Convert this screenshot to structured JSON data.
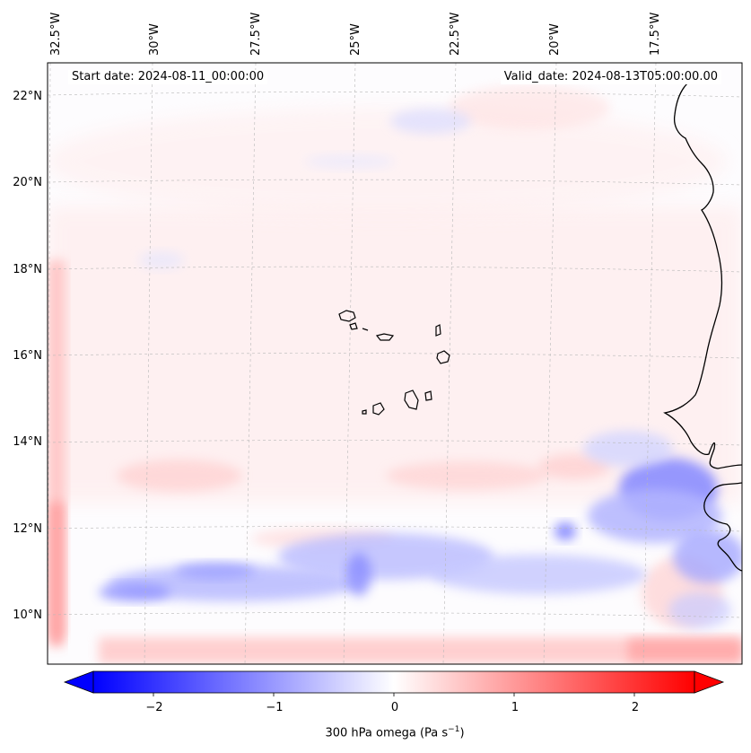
{
  "header": {
    "start_date": "Start date: 2024-08-11_00:00:00",
    "valid_date": "Valid_date: 2024-08-13T05:00:00.00"
  },
  "map": {
    "projection": "lambert-conformal",
    "longitude_labels": [
      "32.5°W",
      "30°W",
      "27.5°W",
      "25°W",
      "22.5°W",
      "20°W",
      "17.5°W"
    ],
    "latitude_labels": [
      "22°N",
      "20°N",
      "18°N",
      "16°N",
      "14°N",
      "12°N",
      "10°N"
    ],
    "longitudes": [
      -32.5,
      -30,
      -27.5,
      -25,
      -22.5,
      -20,
      -17.5
    ],
    "latitudes": [
      22,
      20,
      18,
      16,
      14,
      12,
      10
    ],
    "gridlines": true,
    "features": [
      "West African coastline",
      "Cape Verde islands"
    ]
  },
  "colorbar": {
    "label": "300 hPa omega (Pa s",
    "label_exponent": "−1",
    "label_close": ")",
    "tick_labels": [
      "−2",
      "−1",
      "0",
      "1",
      "2"
    ],
    "tick_values": [
      -2,
      -1,
      0,
      1,
      2
    ],
    "range": [
      -2.5,
      2.5
    ],
    "extend": "both",
    "colormap": "bwr",
    "color_low": "#0000ff",
    "color_mid": "#ffffff",
    "color_high": "#ff0000"
  }
}
